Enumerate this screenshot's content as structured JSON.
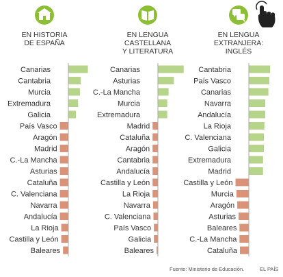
{
  "chart_data": [
    {
      "type": "bar",
      "orientation": "horizontal",
      "title_lines": [
        "EN HISTORIA",
        "DE ESPAÑA"
      ],
      "icon": "building-icon",
      "categories": [
        "Canarias",
        "Cantabria",
        "Murcia",
        "Extremadura",
        "Galicia",
        "País Vasco",
        "Aragón",
        "Madrid",
        "C.-La Mancha",
        "Asturias",
        "Cataluña",
        "C. Valenciana",
        "Navarra",
        "Andalucía",
        "La Rioja",
        "Castilla y León",
        "Baleares"
      ],
      "values": [
        2.2,
        1.4,
        1.3,
        1.1,
        0.85,
        -0.95,
        -0.95,
        -0.95,
        -0.95,
        -0.95,
        -0.95,
        -0.95,
        -0.95,
        -0.95,
        -0.8,
        -0.8,
        -0.6
      ]
    },
    {
      "type": "bar",
      "orientation": "horizontal",
      "title_lines": [
        "EN LENGUA",
        "CASTELLANA",
        "Y LITERATURA"
      ],
      "icon": "book-icon",
      "categories": [
        "Canarias",
        "Asturias",
        "C.-La Mancha",
        "Murcia",
        "Extremadura",
        "Madrid",
        "Cataluña",
        "Aragón",
        "Cantabria",
        "Andalucía",
        "Castilla y León",
        "La Rioja",
        "Navarra",
        "C. Valenciana",
        "País Vasco",
        "Galicia",
        "Baleares"
      ],
      "values": [
        2.9,
        1.8,
        1.2,
        1.05,
        1.05,
        -0.6,
        -0.6,
        -0.6,
        -0.6,
        -0.6,
        -0.6,
        -0.6,
        -0.55,
        -0.5,
        -0.45,
        -0.45,
        -0.15
      ]
    },
    {
      "type": "bar",
      "orientation": "horizontal",
      "title_lines": [
        "EN LENGUA",
        "EXTRANJERA:",
        "INGLÉS"
      ],
      "icon": "speech-bubbles-icon",
      "categories": [
        "Cantabria",
        "País Vasco",
        "Canarias",
        "Navarra",
        "Andalucía",
        "La Rioja",
        "C. Valenciana",
        "Galicia",
        "Extremadura",
        "Madrid",
        "Castilla y León",
        "Murcia",
        "Aragón",
        "Asturias",
        "Baleares",
        "C.-La Mancha",
        "Cataluña"
      ],
      "values": [
        2.4,
        2.3,
        2.2,
        1.85,
        1.85,
        1.75,
        1.7,
        1.7,
        1.6,
        1.6,
        -1.5,
        -1.4,
        -1.3,
        -1.15,
        -1.05,
        -1.05,
        -1.0
      ]
    }
  ],
  "colors": {
    "positive": "#b6d48a",
    "negative": "#d99378",
    "icon": "#8dbf35",
    "cursor": "#222222"
  },
  "footer": {
    "source": "Fuente: Ministerio de Educación.",
    "brand": "EL PAÍS"
  }
}
